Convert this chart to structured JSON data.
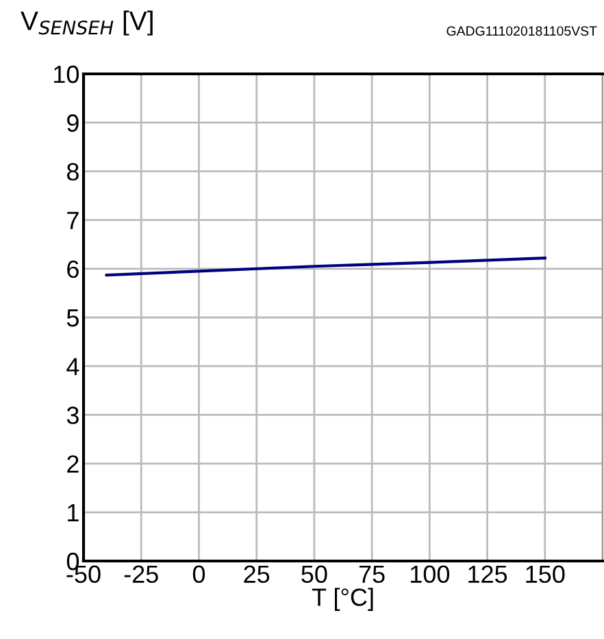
{
  "chart_data": {
    "type": "line",
    "ylabel": "V$_{SENSEH}$ [V]",
    "xlabel": "T [°C]",
    "annotations": [
      "GADG111020181105VST"
    ],
    "x": [
      -40,
      0,
      50,
      100,
      150
    ],
    "series": [
      {
        "color": "#000080",
        "values": [
          5.87,
          5.95,
          6.05,
          6.13,
          6.22
        ]
      }
    ],
    "xlim": [
      -50,
      175
    ],
    "xticks": [
      -50,
      -25,
      0,
      25,
      50,
      75,
      100,
      125,
      150,
      {
        "value": 175,
        "label": null
      }
    ],
    "ylim": [
      0,
      10
    ],
    "yticks": [
      0,
      1,
      2,
      3,
      4,
      5,
      6,
      7,
      8,
      9,
      10
    ],
    "grid": true,
    "legend": false,
    "marker": "none",
    "line_style": "solid"
  }
}
